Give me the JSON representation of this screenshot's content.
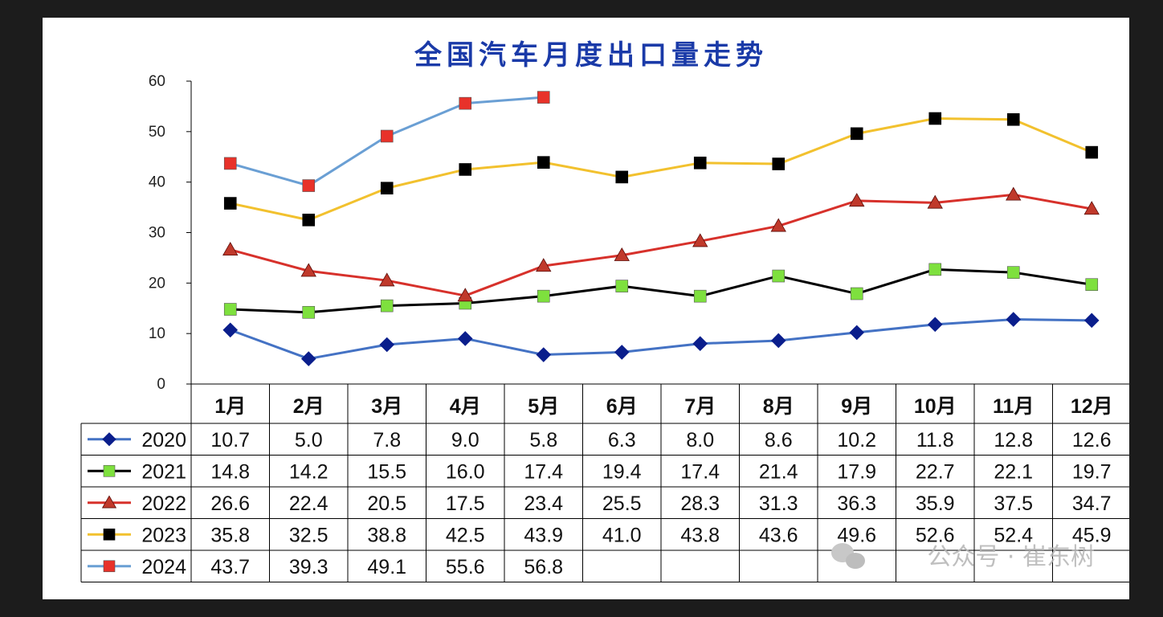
{
  "watermark": "公众号 · 崔东树",
  "chart_data": {
    "type": "line",
    "title": "全国汽车月度出口量走势",
    "xlabel": "",
    "ylabel": "",
    "ylim": [
      0,
      60
    ],
    "yticks": [
      0,
      10,
      20,
      30,
      40,
      50,
      60
    ],
    "grid": false,
    "legend": "data-table-left",
    "categories": [
      "1月",
      "2月",
      "3月",
      "4月",
      "5月",
      "6月",
      "7月",
      "8月",
      "9月",
      "10月",
      "11月",
      "12月"
    ],
    "series": [
      {
        "name": "2020",
        "line_color": "#4472c4",
        "marker": "diamond",
        "marker_color": "#0a1e8c",
        "values": [
          10.7,
          5.0,
          7.8,
          9.0,
          5.8,
          6.3,
          8.0,
          8.6,
          10.2,
          11.8,
          12.8,
          12.6
        ],
        "labels": [
          "10.7",
          "5.0",
          "7.8",
          "9.0",
          "5.8",
          "6.3",
          "8.0",
          "8.6",
          "10.2",
          "11.8",
          "12.8",
          "12.6"
        ]
      },
      {
        "name": "2021",
        "line_color": "#000000",
        "marker": "square",
        "marker_color": "#7ee03e",
        "values": [
          14.8,
          14.2,
          15.5,
          16.0,
          17.4,
          19.4,
          17.4,
          21.4,
          17.9,
          22.7,
          22.1,
          19.7
        ],
        "labels": [
          "14.8",
          "14.2",
          "15.5",
          "16.0",
          "17.4",
          "19.4",
          "17.4",
          "21.4",
          "17.9",
          "22.7",
          "22.1",
          "19.7"
        ]
      },
      {
        "name": "2022",
        "line_color": "#d7312b",
        "marker": "triangle",
        "marker_color": "#c0392b",
        "values": [
          26.6,
          22.4,
          20.5,
          17.5,
          23.4,
          25.5,
          28.3,
          31.3,
          36.3,
          35.9,
          37.5,
          34.7
        ],
        "labels": [
          "26.6",
          "22.4",
          "20.5",
          "17.5",
          "23.4",
          "25.5",
          "28.3",
          "31.3",
          "36.3",
          "35.9",
          "37.5",
          "34.7"
        ]
      },
      {
        "name": "2023",
        "line_color": "#f2c12e",
        "marker": "square",
        "marker_color": "#000000",
        "values": [
          35.8,
          32.5,
          38.8,
          42.5,
          43.9,
          41.0,
          43.8,
          43.6,
          49.6,
          52.6,
          52.4,
          45.9
        ],
        "labels": [
          "35.8",
          "32.5",
          "38.8",
          "42.5",
          "43.9",
          "41.0",
          "43.8",
          "43.6",
          "49.6",
          "52.6",
          "52.4",
          "45.9"
        ]
      },
      {
        "name": "2024",
        "line_color": "#6a9fd4",
        "marker": "square",
        "marker_color": "#e8322a",
        "values": [
          43.7,
          39.3,
          49.1,
          55.6,
          56.8,
          null,
          null,
          null,
          null,
          null,
          null,
          null
        ],
        "labels": [
          "43.7",
          "39.3",
          "49.1",
          "55.6",
          "56.8",
          "",
          "",
          "",
          "",
          "",
          "",
          ""
        ]
      }
    ]
  }
}
